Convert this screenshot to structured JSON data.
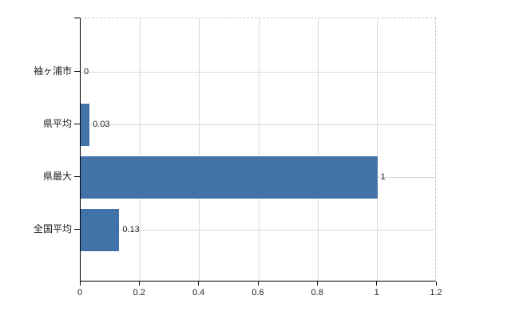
{
  "chart_data": {
    "type": "bar",
    "orientation": "horizontal",
    "title": "",
    "xlabel": "",
    "ylabel": "",
    "categories": [
      "袖ヶ浦市",
      "県平均",
      "県最大",
      "全国平均"
    ],
    "values": [
      0,
      0.03,
      1,
      0.13
    ],
    "value_labels": [
      "0",
      "0.03",
      "1",
      "0.13"
    ],
    "xlim": [
      0,
      1.2
    ],
    "x_ticks": [
      0,
      0.2,
      0.4,
      0.6,
      0.8,
      1,
      1.2
    ],
    "x_tick_labels": [
      "0",
      "0.2",
      "0.4",
      "0.6",
      "0.8",
      "1",
      "1.2"
    ],
    "grid": true,
    "legend": false,
    "colors": {
      "bar": "#4273a8",
      "gridline": "#d9d9d9",
      "axis": "#000000",
      "plot_border_dashed": "#cccccc",
      "tick_text": "#262626",
      "category_text": "#1a1a1a",
      "background": "#ffffff"
    }
  }
}
